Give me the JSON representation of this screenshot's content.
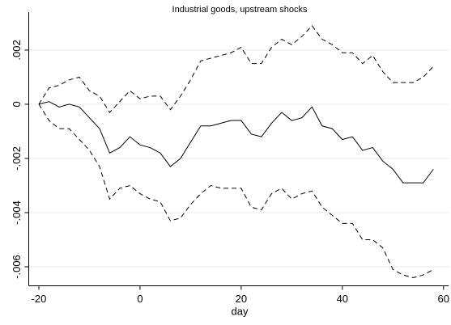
{
  "chart_data": {
    "type": "line",
    "title": "Industrial goods, upstream shocks",
    "x_label": "day",
    "x": [
      -20,
      -18,
      -16,
      -14,
      -12,
      -10,
      -8,
      -6,
      -4,
      -2,
      0,
      2,
      4,
      6,
      8,
      10,
      12,
      14,
      16,
      18,
      20,
      22,
      24,
      26,
      28,
      30,
      32,
      34,
      36,
      38,
      40,
      42,
      44,
      46,
      48,
      50,
      52,
      54,
      56,
      58
    ],
    "series": [
      {
        "color": "#000000",
        "style": "solid",
        "values": [
          0,
          0.0001,
          -0.0001,
          0,
          -0.0001,
          -0.0005,
          -0.0009,
          -0.0018,
          -0.0016,
          -0.0012,
          -0.0015,
          -0.0016,
          -0.0018,
          -0.0023,
          -0.002,
          -0.0014,
          -0.0008,
          -0.0008,
          -0.0007,
          -0.0006,
          -0.0006,
          -0.0011,
          -0.0012,
          -0.0007,
          -0.0003,
          -0.0006,
          -0.0005,
          -0.0001,
          -0.0008,
          -0.0009,
          -0.0013,
          -0.0012,
          -0.0017,
          -0.0016,
          -0.0021,
          -0.0024,
          -0.0029,
          -0.0029,
          -0.0029,
          -0.0024
        ]
      },
      {
        "color": "#000000",
        "style": "dashed",
        "values": [
          0,
          0.0006,
          0.0007,
          0.0009,
          0.001,
          0.0005,
          0.0003,
          -0.0003,
          0.0001,
          0.0005,
          0.0002,
          0.0003,
          0.0003,
          -0.0002,
          0.0003,
          0.0009,
          0.0016,
          0.0017,
          0.0018,
          0.0019,
          0.0021,
          0.0015,
          0.0015,
          0.0021,
          0.0024,
          0.0022,
          0.0025,
          0.0029,
          0.0024,
          0.0022,
          0.0019,
          0.0019,
          0.0015,
          0.0018,
          0.0012,
          0.0008,
          0.0008,
          0.0008,
          0.001,
          0.0014
        ]
      },
      {
        "color": "#000000",
        "style": "dashed",
        "values": [
          0,
          -0.0006,
          -0.0009,
          -0.0009,
          -0.0013,
          -0.0017,
          -0.0023,
          -0.0035,
          -0.0031,
          -0.003,
          -0.0033,
          -0.0035,
          -0.0036,
          -0.0043,
          -0.0042,
          -0.0037,
          -0.0033,
          -0.003,
          -0.0031,
          -0.0031,
          -0.0031,
          -0.0038,
          -0.0039,
          -0.0033,
          -0.0031,
          -0.0035,
          -0.0033,
          -0.0032,
          -0.0038,
          -0.0041,
          -0.0044,
          -0.0044,
          -0.005,
          -0.005,
          -0.0053,
          -0.0061,
          -0.0063,
          -0.0064,
          -0.0063,
          -0.0061
        ]
      }
    ],
    "xlim": [
      -22,
      61
    ],
    "xticks": [
      -20,
      0,
      20,
      40,
      60
    ],
    "ylim": [
      -0.0067,
      0.0034
    ],
    "yticks": [
      {
        "value": 0.002,
        "label": ".002"
      },
      0,
      {
        "value": -0.002,
        "label": "-.002"
      },
      {
        "value": -0.004,
        "label": "-.004"
      },
      {
        "value": -0.006,
        "label": "-.006"
      }
    ],
    "grid": true
  }
}
